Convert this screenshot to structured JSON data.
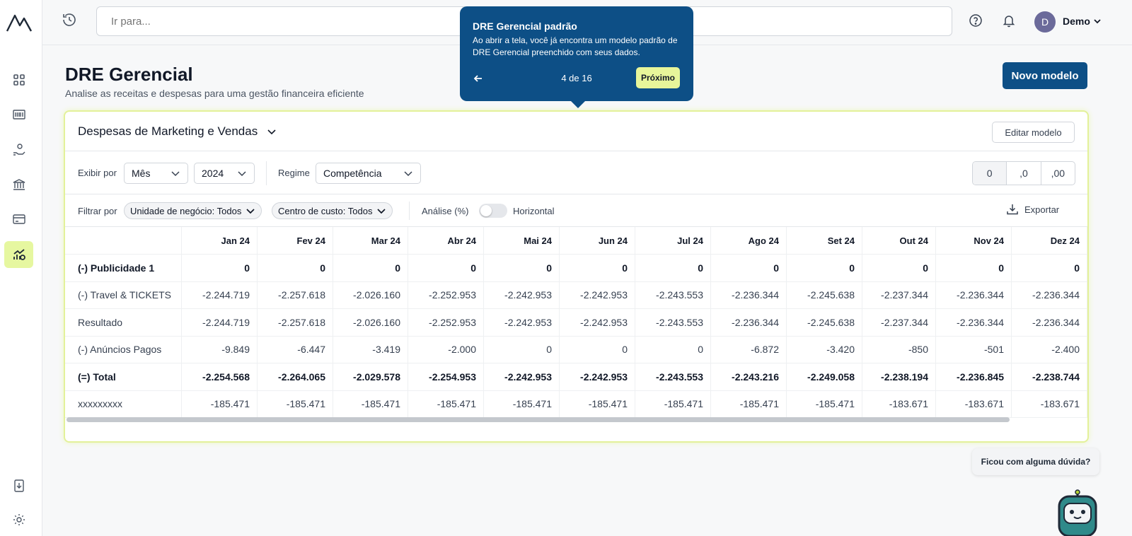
{
  "topbar": {
    "search_placeholder": "Ir para...",
    "user_initial": "D",
    "user_name": "Demo"
  },
  "header": {
    "title": "DRE Gerencial",
    "subtitle": "Analise as receitas e despesas para uma gestão financeira eficiente",
    "new_model_label": "Novo modelo"
  },
  "tooltip": {
    "title": "DRE Gerencial padrão",
    "body": "Ao abrir a tela, você já encontra um modelo padrão de DRE Gerencial preenchido com seus dados.",
    "counter": "4 de 16",
    "next_label": "Próximo"
  },
  "card": {
    "model_name": "Despesas de Marketing e Vendas",
    "edit_label": "Editar modelo"
  },
  "controls": {
    "show_by_label": "Exibir por",
    "period": "Mês",
    "year": "2024",
    "regime_label": "Regime",
    "regime": "Competência",
    "decimals": [
      "0",
      ",0",
      ",00"
    ]
  },
  "filters": {
    "label": "Filtrar por",
    "business_unit": "Unidade de negócio: Todos",
    "cost_center": "Centro de custo: Todos",
    "analysis_label": "Análise (%)",
    "horizontal_label": "Horizontal",
    "export_label": "Exportar"
  },
  "table": {
    "columns": [
      "Jan 24",
      "Fev 24",
      "Mar 24",
      "Abr 24",
      "Mai 24",
      "Jun 24",
      "Jul 24",
      "Ago 24",
      "Set 24",
      "Out 24",
      "Nov 24",
      "Dez 24"
    ],
    "rows": [
      {
        "label": "(-) Publicidade 1",
        "bold": true,
        "values": [
          "0",
          "0",
          "0",
          "0",
          "0",
          "0",
          "0",
          "0",
          "0",
          "0",
          "0",
          "0"
        ]
      },
      {
        "label": "(-) Travel & TICKETS",
        "bold": false,
        "values": [
          "-2.244.719",
          "-2.257.618",
          "-2.026.160",
          "-2.252.953",
          "-2.242.953",
          "-2.242.953",
          "-2.243.553",
          "-2.236.344",
          "-2.245.638",
          "-2.237.344",
          "-2.236.344",
          "-2.236.344"
        ]
      },
      {
        "label": "Resultado",
        "bold": false,
        "values": [
          "-2.244.719",
          "-2.257.618",
          "-2.026.160",
          "-2.252.953",
          "-2.242.953",
          "-2.242.953",
          "-2.243.553",
          "-2.236.344",
          "-2.245.638",
          "-2.237.344",
          "-2.236.344",
          "-2.236.344"
        ]
      },
      {
        "label": "(-) Anúncios Pagos",
        "bold": false,
        "values": [
          "-9.849",
          "-6.447",
          "-3.419",
          "-2.000",
          "0",
          "0",
          "0",
          "-6.872",
          "-3.420",
          "-850",
          "-501",
          "-2.400"
        ]
      },
      {
        "label": "(=) Total",
        "bold": true,
        "values": [
          "-2.254.568",
          "-2.264.065",
          "-2.029.578",
          "-2.254.953",
          "-2.242.953",
          "-2.242.953",
          "-2.243.553",
          "-2.243.216",
          "-2.249.058",
          "-2.238.194",
          "-2.236.845",
          "-2.238.744"
        ]
      },
      {
        "label": "xxxxxxxxx",
        "bold": false,
        "values": [
          "-185.471",
          "-185.471",
          "-185.471",
          "-185.471",
          "-185.471",
          "-185.471",
          "-185.471",
          "-185.471",
          "-185.471",
          "-183.671",
          "-183.671",
          "-183.671"
        ]
      }
    ]
  },
  "help": {
    "bubble_text": "Ficou com alguma dúvida?"
  }
}
